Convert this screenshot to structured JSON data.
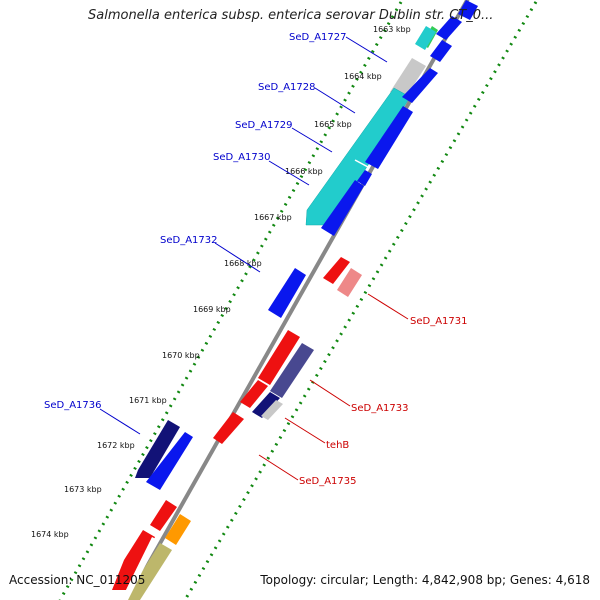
{
  "title": "Salmonella enterica subsp. enterica serovar Dublin str. CT_0...",
  "footer": {
    "accession": "Accession: NC_011205",
    "summary": "Topology: circular; Length: 4,842,908 bp; Genes: 4,618"
  },
  "ticks": [
    "1663 kbp",
    "1664 kbp",
    "1665 kbp",
    "1666 kbp",
    "1667 kbp",
    "1668 kbp",
    "1669 kbp",
    "1670 kbp",
    "1671 kbp",
    "1672 kbp",
    "1673 kbp",
    "1674 kbp"
  ],
  "gene_labels": {
    "SeD_A1727": "SeD_A1727",
    "SeD_A1728": "SeD_A1728",
    "SeD_A1729": "SeD_A1729",
    "SeD_A1730": "SeD_A1730",
    "SeD_A1732": "SeD_A1732",
    "SeD_A1736": "SeD_A1736",
    "SeD_A1731": "SeD_A1731",
    "SeD_A1733": "SeD_A1733",
    "tehB": "tehB",
    "SeD_A1735": "SeD_A1735"
  },
  "colors": {
    "forward_strand_label": "#0000cc",
    "reverse_strand_label": "#cc0000",
    "backbone": "#888888",
    "gc_dots": "#118811"
  }
}
